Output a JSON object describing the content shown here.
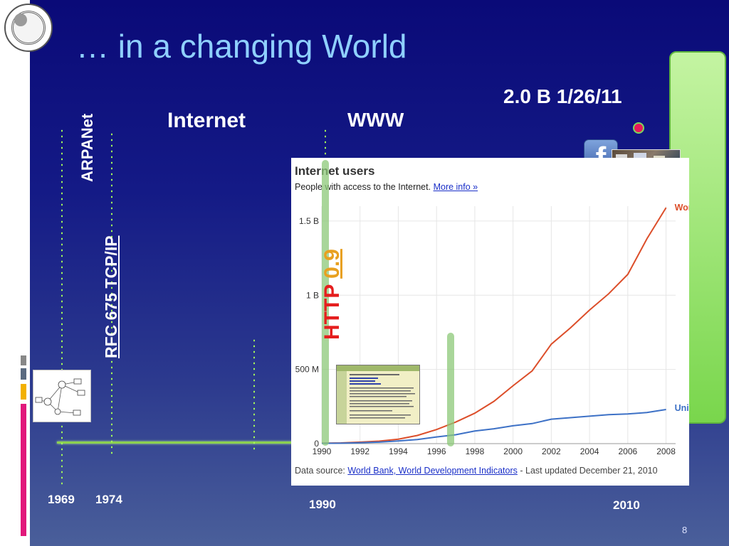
{
  "slide": {
    "title": "… in a changing World",
    "page_number": "8",
    "accent_colors": {
      "title": "#8fd0ff",
      "timeline": "#8cd14f",
      "http_red": "#e51e1e",
      "version_gold": "#e8a020",
      "highlight_pink": "#e8195a"
    }
  },
  "labels": {
    "arpanet": "ARPANet",
    "rfc": "RFC 675 TCP/IP",
    "internet": "Internet",
    "www": "WWW",
    "http": "HTTP",
    "http_version": "0.9",
    "facebook_stat": "2.0 B 1/26/11"
  },
  "timeline": {
    "years": [
      "1969",
      "1974",
      "1990",
      "2010"
    ]
  },
  "icons": {
    "logo": "university-seal-icon",
    "facebook": "facebook-icon",
    "crowd": "protest-crowd-photo",
    "network": "network-diagram-icon",
    "webpage": "web-page-screenshot-icon"
  },
  "chart_data": {
    "type": "line",
    "title": "Internet users",
    "subtitle": "People with access to the Internet.",
    "subtitle_link": "More info »",
    "source_prefix": "Data source: ",
    "source_link": "World Bank, World Development Indicators",
    "source_suffix": " - Last updated December 21, 2010",
    "x": [
      1990,
      1991,
      1992,
      1993,
      1994,
      1995,
      1996,
      1997,
      1998,
      1999,
      2000,
      2001,
      2002,
      2003,
      2004,
      2005,
      2006,
      2007,
      2008
    ],
    "x_ticks": [
      "1990",
      "1992",
      "1994",
      "1996",
      "1998",
      "2000",
      "2002",
      "2004",
      "2006",
      "2008"
    ],
    "y_ticks": [
      "0",
      "500 M",
      "1 B",
      "1.5 B"
    ],
    "ylim": [
      0,
      1600
    ],
    "y_unit": "millions",
    "grid": true,
    "series": [
      {
        "name": "World",
        "color": "#dc4e2a",
        "values": [
          3,
          5,
          10,
          17,
          30,
          55,
          95,
          145,
          205,
          285,
          390,
          490,
          670,
          780,
          900,
          1010,
          1140,
          1380,
          1590
        ]
      },
      {
        "name": "United States",
        "color": "#3d71c6",
        "values": [
          2,
          3,
          6,
          10,
          18,
          28,
          45,
          60,
          85,
          100,
          120,
          135,
          165,
          175,
          185,
          195,
          200,
          210,
          230
        ]
      }
    ]
  }
}
